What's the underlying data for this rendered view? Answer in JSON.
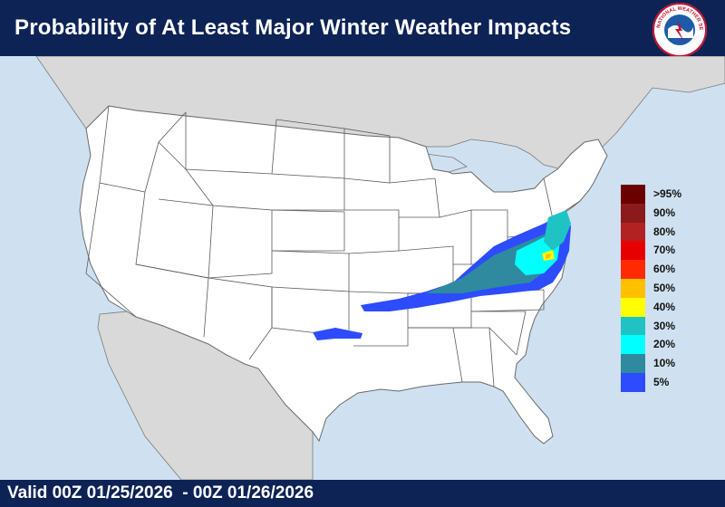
{
  "header": {
    "title": "Probability of At Least Major Winter Weather Impacts"
  },
  "logo": {
    "text": "NATIONAL WEATHER SERVICE",
    "icon": "nws-logo-icon"
  },
  "footer": {
    "valid_text": "Valid 00Z 01/25/2026  - 00Z 01/26/2026"
  },
  "legend": {
    "items": [
      {
        "label": ">95%",
        "color": "#6b0000"
      },
      {
        "label": "90%",
        "color": "#8b1a1a"
      },
      {
        "label": "80%",
        "color": "#b22222"
      },
      {
        "label": "70%",
        "color": "#e60000"
      },
      {
        "label": "60%",
        "color": "#ff2a00"
      },
      {
        "label": "50%",
        "color": "#ffc000"
      },
      {
        "label": "40%",
        "color": "#ffff00"
      },
      {
        "label": "30%",
        "color": "#1fc3c3"
      },
      {
        "label": "20%",
        "color": "#00ffff"
      },
      {
        "label": "10%",
        "color": "#2f8aa0"
      },
      {
        "label": "5%",
        "color": "#2d4bff"
      }
    ]
  },
  "colors": {
    "ocean": "#cfe1f1",
    "land_us": "#ffffff",
    "land_foreign": "#d9d9d9",
    "banner": "#0d2356"
  }
}
